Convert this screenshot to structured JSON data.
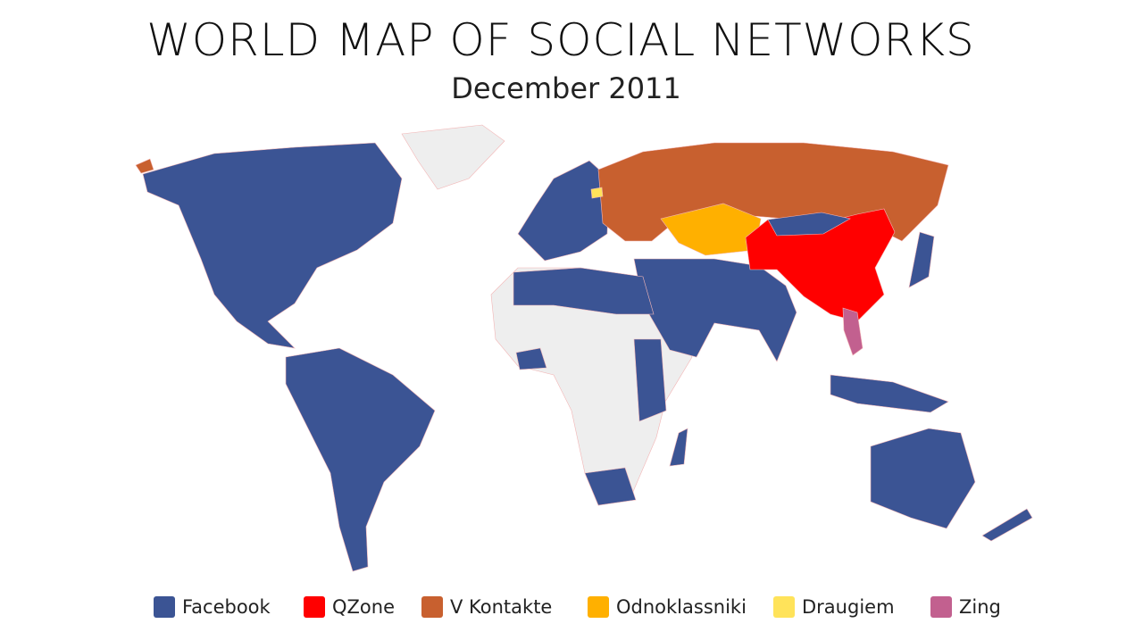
{
  "title": "WORLD MAP OF SOCIAL NETWORKS",
  "subtitle": "December 2011",
  "legend": [
    {
      "label": "Facebook",
      "color": "#3b5494"
    },
    {
      "label": "QZone",
      "color": "#ff0000"
    },
    {
      "label": "V Kontakte",
      "color": "#c8602f"
    },
    {
      "label": "Odnoklassniki",
      "color": "#ffb000"
    },
    {
      "label": "Draugiem",
      "color": "#ffe35a"
    },
    {
      "label": "Zing",
      "color": "#c2608f"
    }
  ]
}
